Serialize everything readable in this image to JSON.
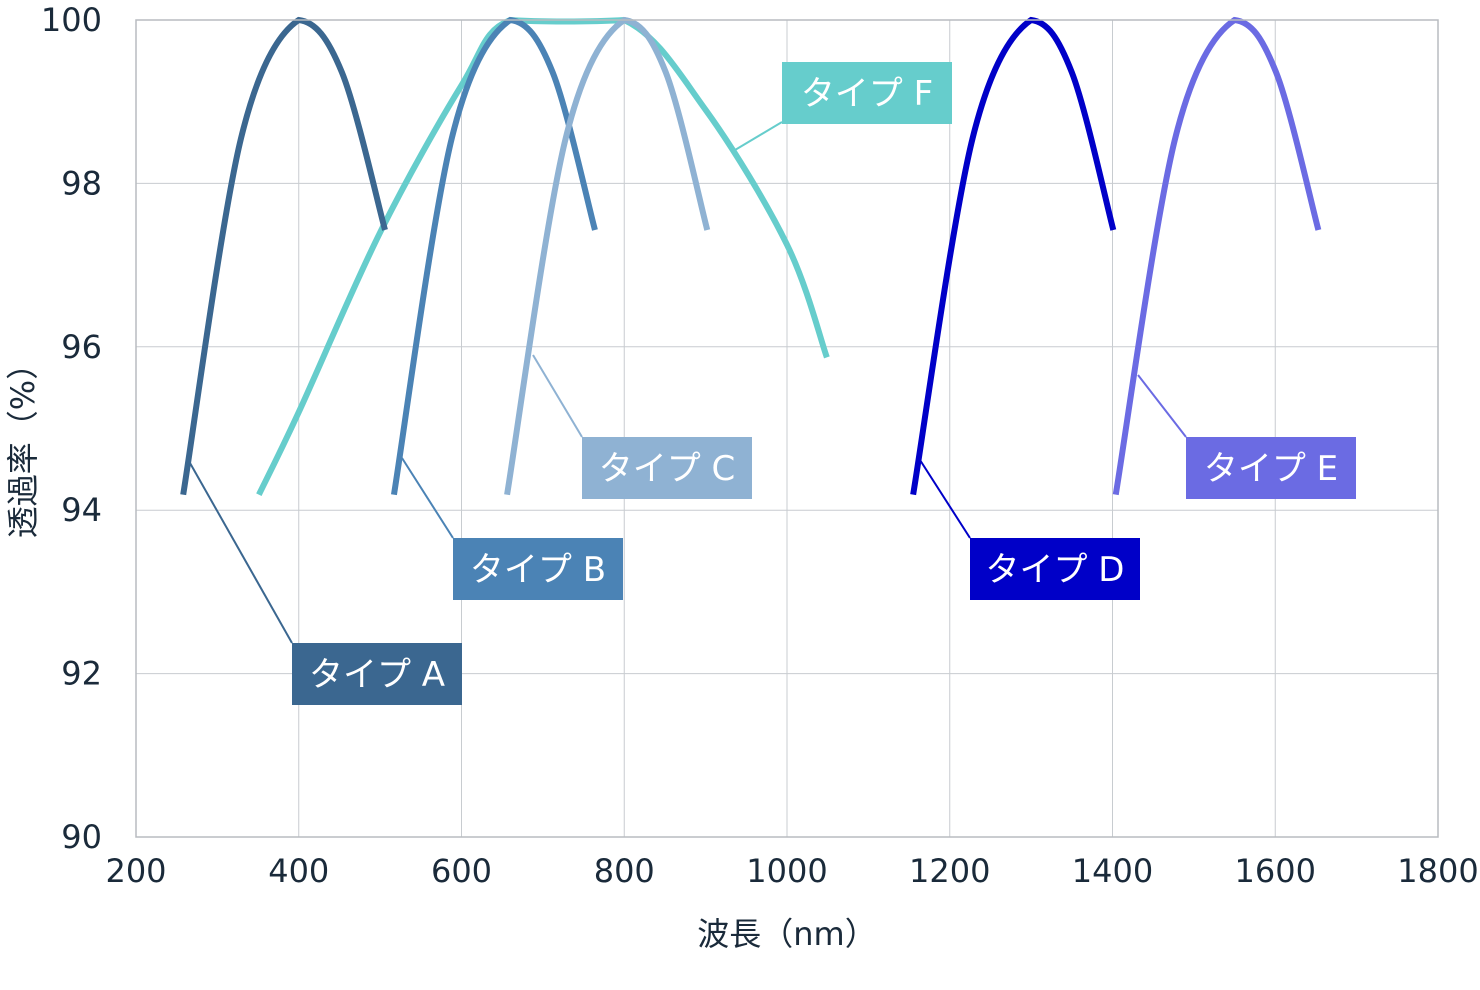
{
  "chart_data": {
    "type": "line",
    "title": "",
    "xlabel": "波長（nm）",
    "ylabel": "透過率（%）",
    "xlim": [
      200,
      1800
    ],
    "ylim": [
      90,
      100
    ],
    "xticks": [
      200,
      400,
      600,
      800,
      1000,
      1200,
      1400,
      1600,
      1800
    ],
    "yticks": [
      90,
      92,
      94,
      96,
      98,
      100
    ],
    "grid": true,
    "legend": "callout labels",
    "series": [
      {
        "name": "タイプ A",
        "color": "#3b6790",
        "x": [
          258,
          329,
          400,
          453,
          506
        ],
        "y": [
          94.19,
          98.55,
          100,
          99.36,
          97.43
        ]
      },
      {
        "name": "タイプ B",
        "color": "#4b83b5",
        "x": [
          517,
          588,
          660,
          712,
          764
        ],
        "y": [
          94.19,
          98.55,
          100,
          99.36,
          97.43
        ]
      },
      {
        "name": "タイプ C",
        "color": "#8fb2d3",
        "x": [
          656,
          728,
          800,
          851,
          902
        ],
        "y": [
          94.19,
          98.55,
          100,
          99.36,
          97.43
        ]
      },
      {
        "name": "タイプ D",
        "color": "#0000c8",
        "x": [
          1155,
          1228,
          1300,
          1350,
          1401
        ],
        "y": [
          94.19,
          98.55,
          100,
          99.36,
          97.43
        ]
      },
      {
        "name": "タイプ E",
        "color": "#6b6be3",
        "x": [
          1404,
          1477,
          1550,
          1601,
          1653
        ],
        "y": [
          94.19,
          98.55,
          100,
          99.36,
          97.43
        ]
      },
      {
        "name": "タイプ F",
        "color": "#66cdcc",
        "x": [
          351,
          400,
          500,
          600,
          660,
          800,
          900,
          1000,
          1049
        ],
        "y": [
          94.19,
          95.2,
          97.4,
          99.2,
          100,
          100,
          98.9,
          97.25,
          95.87
        ]
      }
    ]
  }
}
